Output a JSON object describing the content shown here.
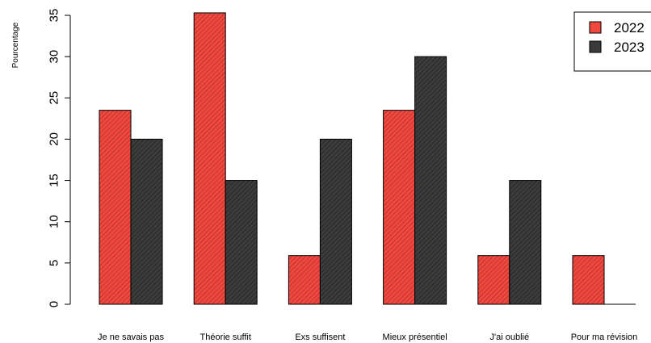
{
  "chart_data": {
    "type": "bar",
    "ylabel": "Pourcentage",
    "xlabel": "",
    "title": "",
    "categories": [
      "Je ne savais pas",
      "Théorie suffit",
      "Exs suffisent",
      "Mieux présentiel",
      "J'ai oublié",
      "Pour ma révision"
    ],
    "series": [
      {
        "name": "2022",
        "values": [
          23.5,
          35.3,
          5.9,
          23.5,
          5.9,
          5.9
        ],
        "color": "#f0473f",
        "hatch": "#7a1d18"
      },
      {
        "name": "2023",
        "values": [
          20,
          15,
          20,
          30,
          15,
          0
        ],
        "color": "#3a3a3a",
        "hatch": "#111111"
      }
    ],
    "ylim": [
      0,
      35
    ],
    "yticks": [
      0,
      5,
      10,
      15,
      20,
      25,
      30,
      35
    ],
    "grid": false,
    "legend_position": "top-right"
  }
}
